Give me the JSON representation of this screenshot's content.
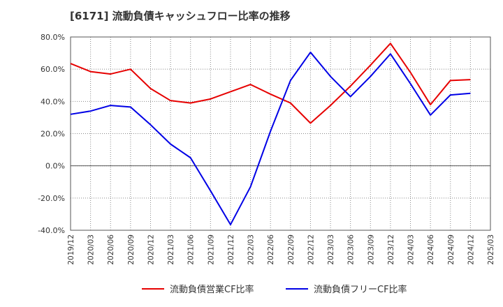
{
  "chart_data": {
    "type": "line",
    "title": "[6171]  流動負債キャッシュフロー比率の推移",
    "xlabel": "",
    "ylabel": "",
    "ylim": [
      -40,
      80
    ],
    "yticks": [
      80,
      60,
      40,
      20,
      0,
      -20,
      -40
    ],
    "ytick_labels": [
      "80.0%",
      "60.0%",
      "40.0%",
      "20.0%",
      "0.0%",
      "-20.0%",
      "-40.0%"
    ],
    "categories": [
      "2019/12",
      "2020/03",
      "2020/06",
      "2020/09",
      "2020/12",
      "2021/03",
      "2021/06",
      "2021/09",
      "2021/12",
      "2022/03",
      "2022/06",
      "2022/09",
      "2022/12",
      "2023/03",
      "2023/06",
      "2023/09",
      "2023/12",
      "2024/03",
      "2024/06",
      "2024/09",
      "2024/12",
      "2025/03"
    ],
    "grid": true,
    "legend_position": "bottom",
    "series": [
      {
        "name": "流動負債営業CF比率",
        "color": "#e60000",
        "values": [
          63.5,
          58.5,
          57.0,
          60.0,
          48.0,
          40.5,
          39.0,
          41.5,
          46.0,
          50.5,
          44.5,
          39.0,
          26.5,
          37.5,
          49.5,
          62.5,
          76.0,
          58.0,
          38.0,
          53.0,
          53.5,
          null
        ]
      },
      {
        "name": "流動負債フリーCF比率",
        "color": "#0000e6",
        "values": [
          32.0,
          34.0,
          37.5,
          36.5,
          25.5,
          13.5,
          5.0,
          -15.5,
          -36.5,
          -13.0,
          21.5,
          53.0,
          70.5,
          55.5,
          43.0,
          55.5,
          69.5,
          51.0,
          31.5,
          44.0,
          45.0,
          null
        ]
      }
    ]
  }
}
